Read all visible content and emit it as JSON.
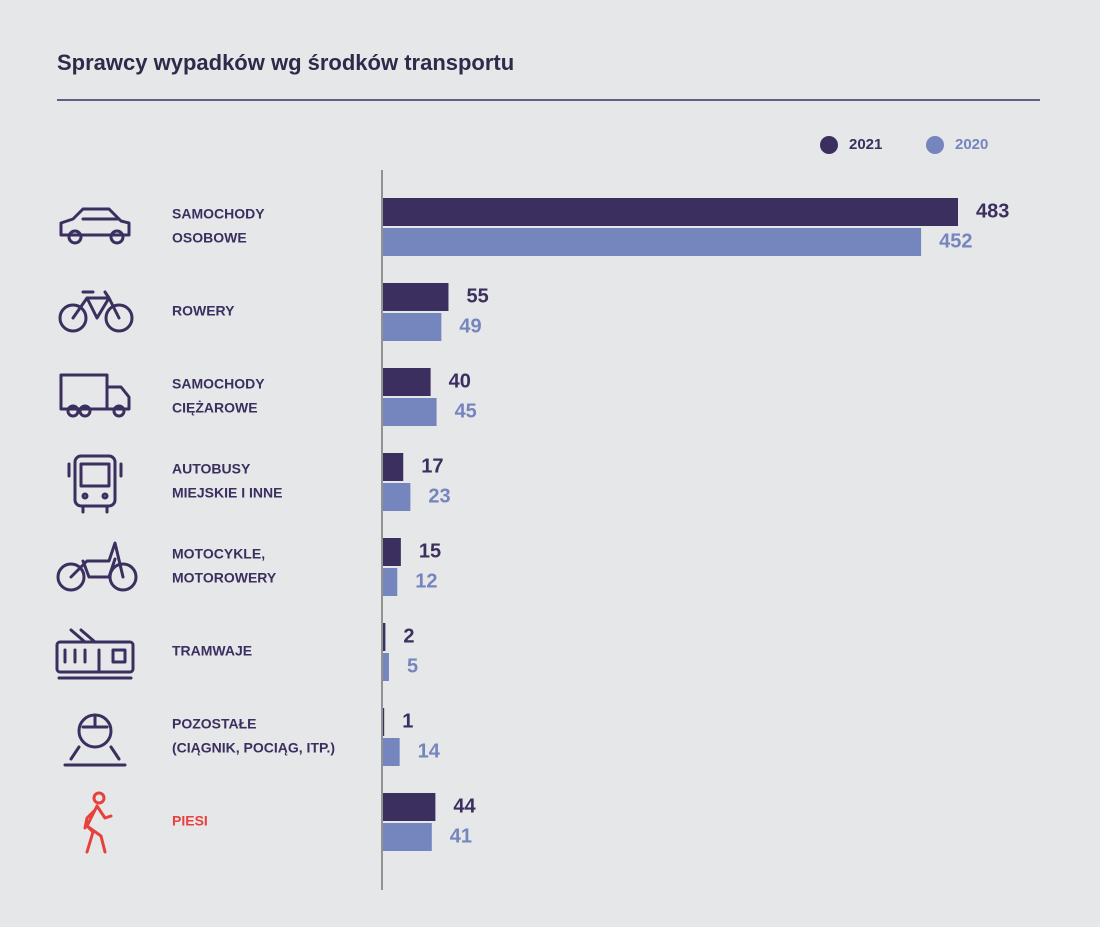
{
  "chart_data": {
    "type": "hbar",
    "title": "Sprawcy wypadków wg środków transportu",
    "categories": [
      [
        "SAMOCHODY",
        "OSOBOWE"
      ],
      [
        "ROWERY"
      ],
      [
        "SAMOCHODY",
        "CIĘŻAROWE"
      ],
      [
        "AUTOBUSY",
        "MIEJSKIE I INNE"
      ],
      [
        "MOTOCYKLE,",
        "MOTOROWERY"
      ],
      [
        "TRAMWAJE"
      ],
      [
        "POZOSTAŁE",
        "(CIĄGNIK, POCIĄG, ITP.)"
      ],
      [
        "PIESI"
      ]
    ],
    "label_colors": [
      "#3a2f5e",
      "#3a2f5e",
      "#3a2f5e",
      "#3a2f5e",
      "#3a2f5e",
      "#3a2f5e",
      "#3a2f5e",
      "#e8413c"
    ],
    "series": [
      {
        "name": "2021",
        "color": "#3a2f5e",
        "values": [
          483,
          55,
          40,
          17,
          15,
          2,
          1,
          44
        ]
      },
      {
        "name": "2020",
        "color": "#7585bd",
        "values": [
          452,
          49,
          45,
          23,
          12,
          5,
          14,
          41
        ]
      }
    ],
    "legend": "top-right"
  }
}
